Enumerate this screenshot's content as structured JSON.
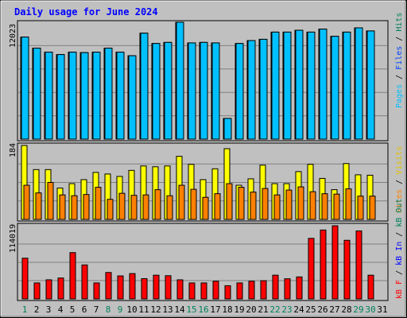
{
  "chart_data": {
    "type": "bar",
    "title": "Daily usage for June 2024",
    "days": [
      "1",
      "2",
      "3",
      "4",
      "5",
      "6",
      "7",
      "8",
      "9",
      "10",
      "11",
      "12",
      "13",
      "14",
      "15",
      "16",
      "17",
      "18",
      "19",
      "20",
      "21",
      "22",
      "23",
      "24",
      "25",
      "26",
      "27",
      "28",
      "29",
      "30",
      "31"
    ],
    "weekend_days": [
      "1",
      "8",
      "9",
      "15",
      "16",
      "22",
      "23",
      "29",
      "30"
    ],
    "top_panel": {
      "max_label": "12023",
      "right_label": {
        "pages": "Pages",
        "files": "Files",
        "hits": "Hits",
        "sep": " / "
      },
      "hits": [
        10500,
        9360,
        8950,
        8700,
        8950,
        8900,
        8950,
        9360,
        8950,
        8580,
        10900,
        9840,
        9950,
        12023,
        9900,
        9950,
        9900,
        2130,
        9840,
        10140,
        10270,
        11010,
        11010,
        11200,
        11010,
        11320,
        10580,
        11010,
        11450,
        11130,
        0
      ],
      "pages": [
        10500,
        9360,
        8950,
        8700,
        8950,
        8900,
        8950,
        9360,
        8950,
        8580,
        10900,
        9840,
        9950,
        12023,
        9900,
        9950,
        9900,
        2130,
        9840,
        10140,
        10270,
        11010,
        11010,
        11200,
        11010,
        11320,
        10580,
        11010,
        11450,
        11130,
        0
      ]
    },
    "middle_panel": {
      "max_label": "184",
      "right_label": {
        "visits": "Visits",
        "sites": "Sites",
        "sep": " / "
      },
      "visits": [
        184,
        124,
        124,
        78,
        89,
        99,
        117,
        113,
        107,
        122,
        133,
        131,
        133,
        157,
        137,
        99,
        126,
        176,
        85,
        101,
        135,
        89,
        89,
        119,
        137,
        102,
        74,
        139,
        111,
        110,
        0
      ],
      "sites": [
        85,
        66,
        92,
        61,
        59,
        62,
        80,
        50,
        65,
        60,
        61,
        74,
        59,
        85,
        75,
        55,
        64,
        89,
        80,
        68,
        77,
        61,
        73,
        81,
        69,
        64,
        63,
        76,
        58,
        58,
        0
      ]
    },
    "bottom_panel": {
      "max_label": "114019",
      "right_label": {
        "kb_f": "kB F",
        "kb_in": "kB In",
        "kb_out": "kB Out",
        "sep": " / "
      },
      "kbytes": [
        63500,
        24900,
        29800,
        32600,
        72200,
        53000,
        24900,
        41200,
        35900,
        39500,
        31600,
        37000,
        36200,
        29800,
        24900,
        24900,
        27600,
        20600,
        24900,
        27600,
        28400,
        37000,
        31400,
        34300,
        94400,
        107400,
        114019,
        91400,
        106000,
        37000,
        0
      ],
      "kb_in": [
        0,
        0,
        0,
        0,
        0,
        0,
        0,
        0,
        0,
        0,
        0,
        0,
        0,
        0,
        0,
        0,
        0,
        0,
        0,
        0,
        0,
        0,
        0,
        0,
        0,
        0,
        0,
        0,
        0,
        0,
        0
      ]
    },
    "colors": {
      "background": "#c0c0c0",
      "page_bg": "#ffffff",
      "title": "#0000ff",
      "hits": "#00805c",
      "files": "#0040ff",
      "pages": "#00c0ff",
      "visits": "#ffff00",
      "sites": "#ff8000",
      "kbytes": "#ff0000",
      "kb_in": "#0000ff",
      "kb_out": "#00805c",
      "weekend_day": "#00805c",
      "weekday": "#000000",
      "grid": "#808080"
    }
  }
}
